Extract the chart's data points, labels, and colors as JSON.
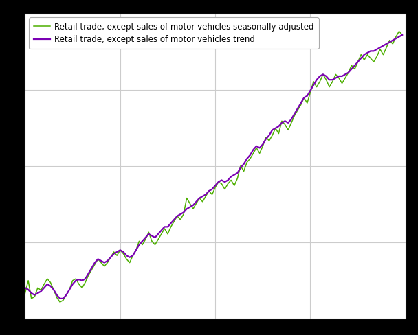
{
  "legend_label_sa": "Retail trade, except sales of motor vehicles seasonally adjusted",
  "legend_label_trend": "Retail trade, except sales of motor vehicles trend",
  "color_sa": "#4daf00",
  "color_trend": "#7b00b4",
  "background_color": "#ffffff",
  "outer_background": "#000000",
  "grid_color": "#cccccc",
  "linewidth_sa": 1.1,
  "linewidth_trend": 1.6,
  "figsize": [
    6.08,
    4.88
  ],
  "dpi": 100,
  "seasonally_adjusted": [
    72.0,
    75.5,
    70.5,
    71.0,
    73.5,
    72.8,
    74.5,
    76.0,
    75.0,
    73.0,
    70.8,
    69.5,
    70.0,
    71.5,
    73.0,
    75.5,
    76.0,
    74.5,
    73.5,
    75.0,
    77.0,
    78.5,
    80.0,
    81.5,
    80.5,
    79.5,
    80.5,
    82.0,
    83.5,
    82.5,
    84.0,
    83.0,
    81.5,
    80.5,
    82.5,
    84.0,
    86.5,
    85.5,
    87.0,
    89.0,
    86.5,
    85.5,
    87.0,
    88.5,
    90.0,
    88.5,
    90.5,
    92.0,
    93.5,
    92.5,
    94.0,
    98.5,
    97.0,
    95.5,
    97.0,
    98.5,
    97.5,
    99.0,
    100.5,
    99.5,
    101.5,
    103.0,
    102.5,
    101.0,
    102.5,
    103.5,
    102.0,
    104.0,
    107.5,
    106.0,
    108.5,
    109.5,
    111.0,
    112.5,
    111.0,
    113.0,
    115.5,
    114.5,
    116.0,
    118.0,
    116.5,
    120.0,
    119.0,
    117.5,
    119.5,
    121.5,
    123.0,
    124.5,
    126.5,
    125.0,
    128.0,
    131.0,
    129.5,
    131.0,
    133.0,
    131.5,
    129.5,
    131.0,
    133.0,
    132.0,
    130.5,
    132.0,
    133.5,
    135.5,
    134.5,
    136.5,
    138.5,
    137.0,
    138.5,
    137.5,
    136.5,
    138.0,
    140.0,
    138.5,
    140.5,
    142.5,
    141.5,
    143.5,
    145.0,
    144.0
  ],
  "trend": [
    73.5,
    73.0,
    72.0,
    71.5,
    72.0,
    72.5,
    73.5,
    74.5,
    74.0,
    73.0,
    71.5,
    70.5,
    70.5,
    71.5,
    73.0,
    74.5,
    75.5,
    75.8,
    75.5,
    76.0,
    77.5,
    79.0,
    80.5,
    81.5,
    81.0,
    80.5,
    81.0,
    82.0,
    83.0,
    83.5,
    84.0,
    83.5,
    82.5,
    82.0,
    82.5,
    84.0,
    85.5,
    86.5,
    87.5,
    88.5,
    88.0,
    87.5,
    88.5,
    89.5,
    90.5,
    90.5,
    91.5,
    92.5,
    93.5,
    94.0,
    94.5,
    95.5,
    96.0,
    96.5,
    97.5,
    98.5,
    99.0,
    99.5,
    100.5,
    101.0,
    102.0,
    103.0,
    103.5,
    103.0,
    103.5,
    104.5,
    105.0,
    105.5,
    107.0,
    108.0,
    109.5,
    110.5,
    112.0,
    113.0,
    112.5,
    113.5,
    115.0,
    116.0,
    117.5,
    118.0,
    118.5,
    119.5,
    120.0,
    119.5,
    120.5,
    122.0,
    123.5,
    125.0,
    126.5,
    127.0,
    128.5,
    130.0,
    131.5,
    132.5,
    133.0,
    132.5,
    131.5,
    131.5,
    132.0,
    132.5,
    132.5,
    133.0,
    133.5,
    134.5,
    135.5,
    136.5,
    137.5,
    138.5,
    139.0,
    139.5,
    139.5,
    140.0,
    140.5,
    141.0,
    141.5,
    142.0,
    142.5,
    143.0,
    143.5,
    144.0
  ],
  "ylim_min": 65,
  "ylim_max": 150
}
